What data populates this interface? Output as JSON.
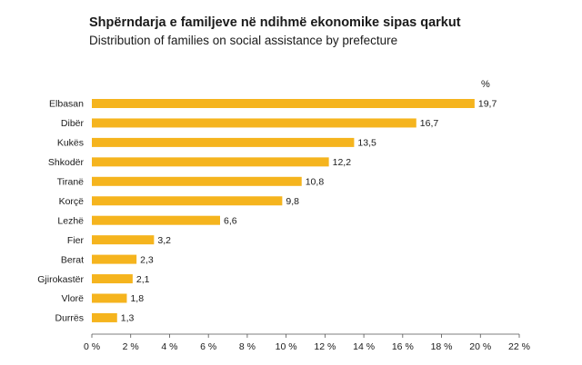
{
  "chart_data": {
    "type": "bar",
    "orientation": "horizontal",
    "title": "Shpërndarja e familjeve në ndihmë ekonomike sipas qarkut",
    "subtitle": "Distribution of families on social assistance by prefecture",
    "unit_label": "%",
    "categories": [
      "Elbasan",
      "Dibër",
      "Kukës",
      "Shkodër",
      "Tiranë",
      "Korçë",
      "Lezhë",
      "Fier",
      "Berat",
      "Gjirokastër",
      "Vlorë",
      "Durrës"
    ],
    "values": [
      19.7,
      16.7,
      13.5,
      12.2,
      10.8,
      9.8,
      6.6,
      3.2,
      2.3,
      2.1,
      1.8,
      1.3
    ],
    "value_labels": [
      "19,7",
      "16,7",
      "13,5",
      "12,2",
      "10,8",
      "9,8",
      "6,6",
      "3,2",
      "2,3",
      "2,1",
      "1,8",
      "1,3"
    ],
    "xlim": [
      0,
      22
    ],
    "xticks": [
      0,
      2,
      4,
      6,
      8,
      10,
      12,
      14,
      16,
      18,
      20,
      22
    ],
    "xtick_labels": [
      "0 %",
      "2 %",
      "4 %",
      "6 %",
      "8 %",
      "10 %",
      "12 %",
      "14 %",
      "16 %",
      "18 %",
      "20 %",
      "22 %"
    ],
    "bar_color": "#F5B41E",
    "grid": false,
    "legend": "none"
  }
}
